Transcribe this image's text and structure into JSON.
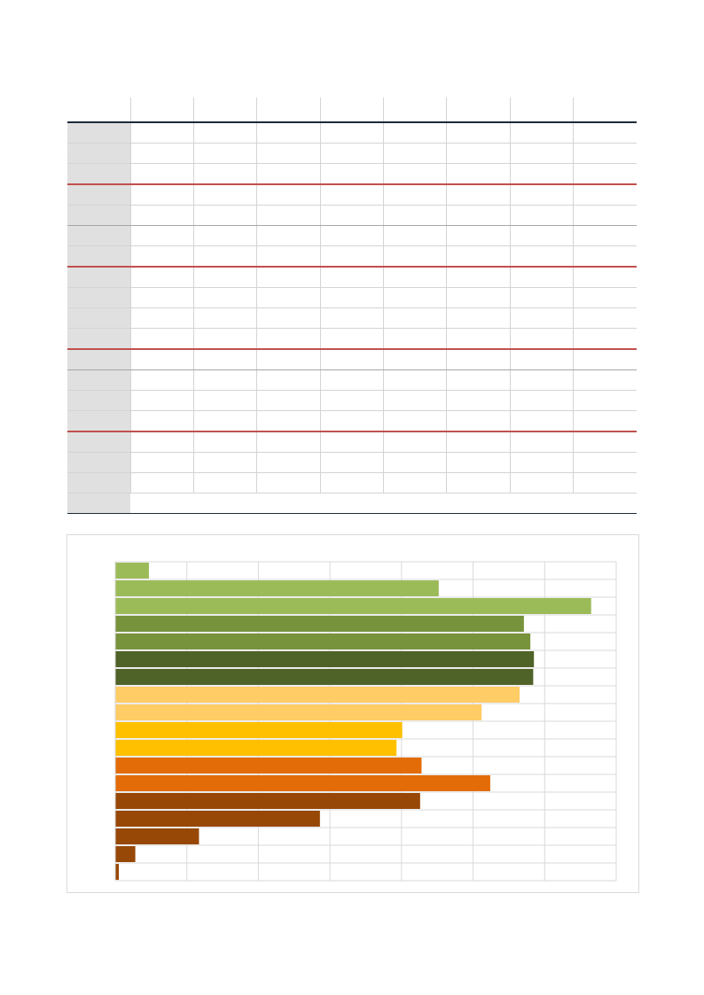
{
  "table": {
    "columns": [
      "",
      "",
      "",
      "",
      "",
      "",
      "",
      "",
      ""
    ],
    "rows": [
      [
        "",
        "",
        "",
        "",
        "",
        "",
        "",
        "",
        ""
      ],
      [
        "",
        "",
        "",
        "",
        "",
        "",
        "",
        "",
        ""
      ],
      [
        "",
        "",
        "",
        "",
        "",
        "",
        "",
        "",
        ""
      ],
      [
        "",
        "",
        "",
        "",
        "",
        "",
        "",
        "",
        ""
      ],
      [
        "",
        "",
        "",
        "",
        "",
        "",
        "",
        "",
        ""
      ],
      [
        "",
        "",
        "",
        "",
        "",
        "",
        "",
        "",
        ""
      ],
      [
        "",
        "",
        "",
        "",
        "",
        "",
        "",
        "",
        ""
      ],
      [
        "",
        "",
        "",
        "",
        "",
        "",
        "",
        "",
        ""
      ],
      [
        "",
        "",
        "",
        "",
        "",
        "",
        "",
        "",
        ""
      ],
      [
        "",
        "",
        "",
        "",
        "",
        "",
        "",
        "",
        ""
      ],
      [
        "",
        "",
        "",
        "",
        "",
        "",
        "",
        "",
        ""
      ],
      [
        "",
        "",
        "",
        "",
        "",
        "",
        "",
        "",
        ""
      ],
      [
        "",
        "",
        "",
        "",
        "",
        "",
        "",
        "",
        ""
      ],
      [
        "",
        "",
        "",
        "",
        "",
        "",
        "",
        "",
        ""
      ],
      [
        "",
        "",
        "",
        "",
        "",
        "",
        "",
        "",
        ""
      ],
      [
        "",
        "",
        "",
        "",
        "",
        "",
        "",
        "",
        ""
      ],
      [
        "",
        "",
        "",
        "",
        "",
        "",
        "",
        "",
        ""
      ],
      [
        "",
        "",
        "",
        "",
        "",
        "",
        "",
        "",
        ""
      ],
      [
        "",
        "",
        "",
        "",
        "",
        "",
        "",
        "",
        ""
      ]
    ]
  },
  "chart_data": {
    "type": "bar",
    "orientation": "horizontal",
    "title": "",
    "xlabel": "",
    "ylabel": "",
    "xlim": [
      0,
      7
    ],
    "grid": true,
    "legend": "none",
    "categories": [
      "",
      "",
      "",
      "",
      "",
      "",
      "",
      "",
      "",
      "",
      "",
      "",
      "",
      "",
      "",
      "",
      "",
      ""
    ],
    "values": [
      0.47,
      4.52,
      6.65,
      5.71,
      5.8,
      5.85,
      5.84,
      5.65,
      5.12,
      4.01,
      3.93,
      4.28,
      5.24,
      4.26,
      2.86,
      1.17,
      0.28,
      0.05
    ],
    "colors": [
      "#9bbb59",
      "#9bbb59",
      "#9bbb59",
      "#77933c",
      "#77933c",
      "#4f6228",
      "#4f6228",
      "#ffcc66",
      "#ffcc66",
      "#ffc000",
      "#ffc000",
      "#e36c09",
      "#e36c09",
      "#974806",
      "#974806",
      "#974806",
      "#974806",
      "#974806"
    ]
  }
}
